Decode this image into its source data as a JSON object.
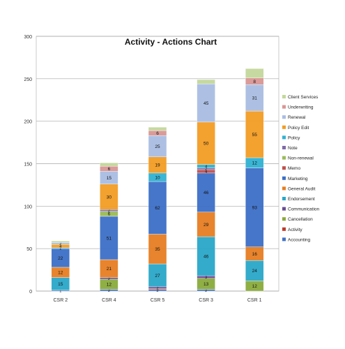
{
  "chart_data": {
    "type": "bar",
    "stacked": true,
    "title": "Activity - Actions Chart",
    "xlabel": "",
    "ylabel": "",
    "ylim": [
      0,
      300
    ],
    "yticks": [
      "0",
      "50",
      "100",
      "150",
      "200",
      "250",
      "300"
    ],
    "grid": true,
    "legend_position": "right",
    "categories": [
      "CSR 2",
      "CSR 4",
      "CSR 5",
      "CSR 3",
      "CSR 1"
    ],
    "series": [
      {
        "name": "Accounting",
        "color": "#4472c4",
        "values": [
          1,
          2,
          2,
          2,
          0
        ],
        "labels": [
          "1",
          "2",
          "2",
          "2",
          ""
        ]
      },
      {
        "name": "Activity",
        "color": "#c0392b",
        "values": [
          0,
          0,
          1,
          0,
          0
        ],
        "labels": [
          "",
          "",
          "",
          "",
          ""
        ]
      },
      {
        "name": "Cancellation",
        "color": "#8aab3c",
        "values": [
          0,
          12,
          0,
          13,
          12
        ],
        "labels": [
          "",
          "12",
          "",
          "13",
          "12"
        ]
      },
      {
        "name": "Communication",
        "color": "#6a4c93",
        "values": [
          0,
          2,
          2,
          3,
          0
        ],
        "labels": [
          "",
          "2",
          "2",
          "3",
          ""
        ]
      },
      {
        "name": "Endorsement",
        "color": "#2aa7c9",
        "values": [
          15,
          0,
          27,
          46,
          24
        ],
        "labels": [
          "15",
          "",
          "27",
          "46",
          "24"
        ]
      },
      {
        "name": "General Audit",
        "color": "#e67e22",
        "values": [
          12,
          21,
          35,
          29,
          16
        ],
        "labels": [
          "12",
          "21",
          "35",
          "29",
          "16"
        ]
      },
      {
        "name": "Marketing",
        "color": "#3d6fc7",
        "values": [
          22,
          51,
          62,
          46,
          93
        ],
        "labels": [
          "22",
          "51",
          "62",
          "46",
          "93"
        ]
      },
      {
        "name": "Memo",
        "color": "#c0504d",
        "values": [
          0,
          0,
          0,
          4,
          0
        ],
        "labels": [
          "",
          "",
          "",
          "4",
          ""
        ]
      },
      {
        "name": "Non-renewal",
        "color": "#9bbb59",
        "values": [
          0,
          6,
          0,
          0,
          0
        ],
        "labels": [
          "",
          "6",
          "",
          "",
          ""
        ]
      },
      {
        "name": "Note",
        "color": "#7f6aa8",
        "values": [
          0,
          2,
          0,
          2,
          0
        ],
        "labels": [
          "",
          "2",
          "",
          "2",
          ""
        ]
      },
      {
        "name": "Policy",
        "color": "#31b2d2",
        "values": [
          1,
          0,
          10,
          4,
          12
        ],
        "labels": [
          "1",
          "",
          "10",
          "4",
          "12"
        ]
      },
      {
        "name": "Policy Edit",
        "color": "#f39c24",
        "values": [
          4,
          30,
          19,
          50,
          55
        ],
        "labels": [
          "4",
          "30",
          "19",
          "50",
          "55"
        ]
      },
      {
        "name": "Renewal",
        "color": "#a9bde3",
        "values": [
          2,
          15,
          25,
          45,
          31
        ],
        "labels": [
          "2",
          "15",
          "25",
          "45",
          "31"
        ]
      },
      {
        "name": "Underwriting",
        "color": "#d99694",
        "values": [
          0,
          6,
          6,
          0,
          8
        ],
        "labels": [
          "",
          "6",
          "6",
          "",
          "8"
        ]
      },
      {
        "name": "Client Services",
        "color": "#c4d79b",
        "values": [
          2,
          4,
          4,
          5,
          11
        ],
        "labels": [
          "",
          "",
          "",
          "",
          ""
        ]
      }
    ]
  }
}
